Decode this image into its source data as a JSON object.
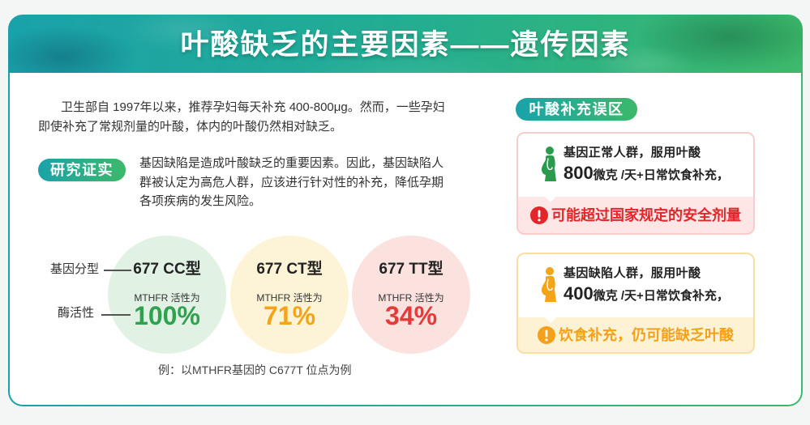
{
  "theme": {
    "brand_teal": "#1aa2aa",
    "brand_green": "#3cb96a",
    "page_bg": "#f3f6f4"
  },
  "header": {
    "title": "叶酸缺乏的主要因素——遗传因素"
  },
  "intro": {
    "lines": [
      "卫生部自 1997年以来，推荐孕妇每天补充 400-800μg。然而，一些孕妇",
      "即使补充了常规剂量的叶酸，体内的叶酸仍然相对缺乏。"
    ]
  },
  "research": {
    "badge": "研究证实",
    "lines": [
      "基因缺陷是造成叶酸缺乏的重要因素。因此，基因缺陷人",
      "群被认定为高危人群，应该进行针对性的补充，降低孕期",
      "各项疾病的发生风险。"
    ]
  },
  "genotype_panel": {
    "row_labels": {
      "genotype": "基因分型",
      "enzyme_activity": "酶活性"
    },
    "genotypes": [
      {
        "name": "677 CC型",
        "activity_label": "MTHFR 活性为",
        "activity": "100%",
        "accent": "#30a14e",
        "fill": "#e1f2e5"
      },
      {
        "name": "677 CT型",
        "activity_label": "MTHFR 活性为",
        "activity": "71%",
        "accent": "#f3a519",
        "fill": "#fdf3d6"
      },
      {
        "name": "677 TT型",
        "activity_label": "MTHFR 活性为",
        "activity": "34%",
        "accent": "#e63a3a",
        "fill": "#fbe2df"
      }
    ],
    "caption": "例：以MTHFR基因的 C677T 位点为例"
  },
  "misconceptions": {
    "badge": "叶酸补充误区",
    "cards": [
      {
        "icon": "pregnant-woman-icon",
        "icon_color": "#2a9a4c",
        "group": "基因正常人群，服用叶酸",
        "dose_value": "800",
        "dose_text": "微克 /天+日常饮食补充，",
        "warning_icon": "exclamation-circle-icon",
        "warning": "可能超过国家规定的安全剂量",
        "accent": "#e4262b",
        "border": "#f7cccc",
        "fill": "#fde6e5"
      },
      {
        "icon": "pregnant-woman-icon",
        "icon_color": "#f3a417",
        "group": "基因缺陷人群，服用叶酸",
        "dose_value": "400",
        "dose_text": "微克 /天+日常饮食补充，",
        "warning_icon": "exclamation-circle-icon",
        "warning": "饮食补充，仍可能缺乏叶酸",
        "accent": "#f3a11a",
        "border": "#f9dea3",
        "fill": "#fef2d4"
      }
    ]
  }
}
